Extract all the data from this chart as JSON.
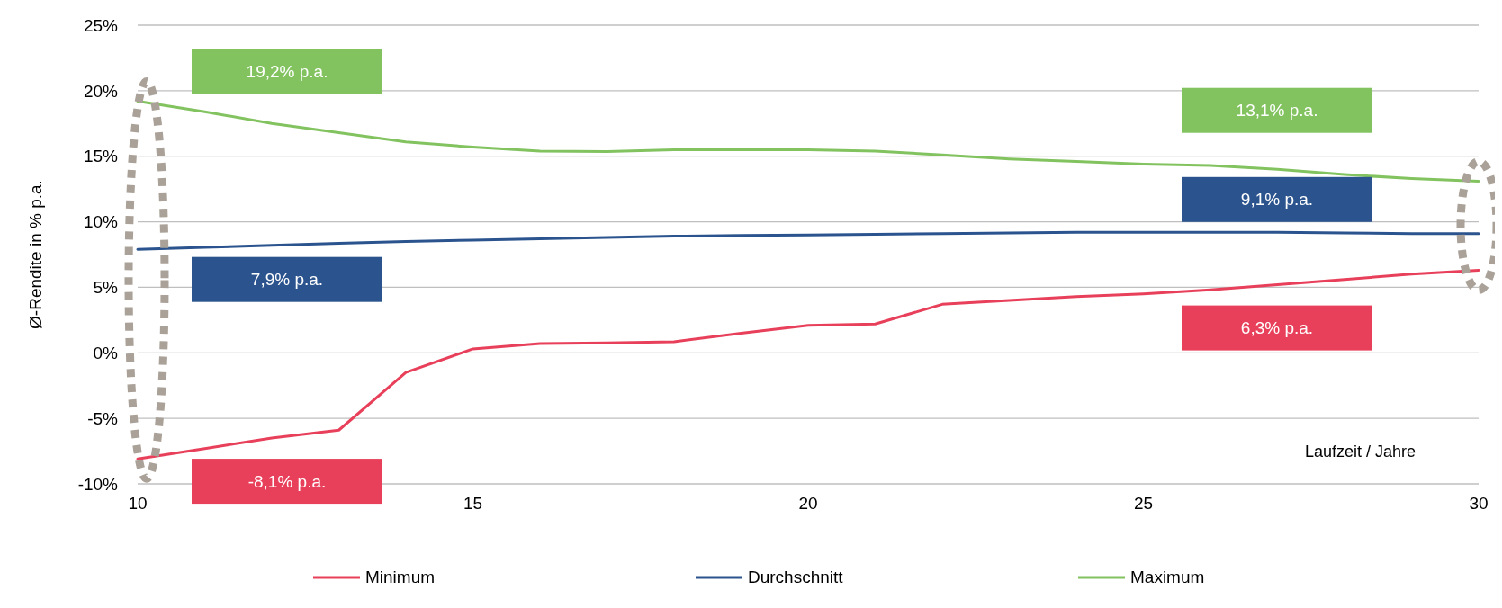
{
  "chart_data": {
    "type": "line",
    "xlabel": "Laufzeit / Jahre",
    "ylabel": "Ø-Rendite in % p.a.",
    "x": [
      10,
      11,
      12,
      13,
      14,
      15,
      16,
      17,
      18,
      19,
      20,
      21,
      22,
      23,
      24,
      25,
      26,
      27,
      28,
      29,
      30
    ],
    "series": [
      {
        "name": "Minimum",
        "color": "#e8405a",
        "values": [
          -8.1,
          -7.3,
          -6.5,
          -5.9,
          -1.5,
          0.3,
          0.7,
          0.75,
          0.85,
          1.5,
          2.1,
          2.2,
          3.7,
          4.0,
          4.3,
          4.5,
          4.8,
          5.2,
          5.6,
          6.0,
          6.3
        ]
      },
      {
        "name": "Durchschnitt",
        "color": "#2b548e",
        "values": [
          7.9,
          8.05,
          8.2,
          8.35,
          8.5,
          8.6,
          8.7,
          8.8,
          8.9,
          8.95,
          9.0,
          9.05,
          9.1,
          9.15,
          9.2,
          9.2,
          9.2,
          9.2,
          9.15,
          9.1,
          9.1
        ]
      },
      {
        "name": "Maximum",
        "color": "#82c360",
        "values": [
          19.2,
          18.4,
          17.5,
          16.8,
          16.1,
          15.7,
          15.4,
          15.35,
          15.5,
          15.5,
          15.5,
          15.4,
          15.1,
          14.8,
          14.6,
          14.4,
          14.3,
          14.0,
          13.6,
          13.3,
          13.1
        ]
      }
    ],
    "xlim": [
      10,
      30
    ],
    "xticks": [
      10,
      15,
      20,
      25,
      30
    ],
    "ylim": [
      -10,
      25
    ],
    "yticks": [
      {
        "value": -10,
        "label": "-10%"
      },
      {
        "value": -5,
        "label": "-5%"
      },
      {
        "value": 0,
        "label": "0%"
      },
      {
        "value": 5,
        "label": "5%"
      },
      {
        "value": 10,
        "label": "10%"
      },
      {
        "value": 15,
        "label": "15%"
      },
      {
        "value": 20,
        "label": "20%"
      },
      {
        "value": 25,
        "label": "25%"
      }
    ],
    "grid": "y",
    "legend": "bottom",
    "marker": "none",
    "line_style": "solid",
    "annotations": [
      "19,2% p.a.",
      "7,9% p.a.",
      "-8,1% p.a.",
      "13,1% p.a.",
      "9,1% p.a.",
      "6,3% p.a."
    ]
  }
}
